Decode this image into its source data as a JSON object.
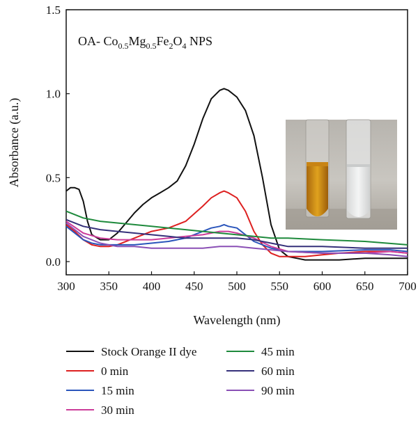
{
  "chart_data": {
    "type": "line",
    "annotation": {
      "prefix": "OA- Co",
      "s1": "0.5",
      "m": "Mg",
      "s2": "0.5",
      "fe": "Fe",
      "s3": "2",
      "o": "O",
      "s4": "4",
      "suffix": " NPS"
    },
    "xlabel": "Wavelength (nm)",
    "ylabel": "Absorbance (a.u.)",
    "xlim": [
      300,
      700
    ],
    "ylim": [
      0,
      1.5
    ],
    "x_ticks": [
      "300",
      "350",
      "400",
      "450",
      "500",
      "550",
      "600",
      "650",
      "700"
    ],
    "y_ticks": [
      "0.0",
      "0.5",
      "1.0",
      "1.5"
    ],
    "grid": false,
    "legend_position": "below",
    "inset": "photo of two test tubes (orange dye solution and clear solution)",
    "series": [
      {
        "name": "Stock Orange II dye",
        "color": "#111111",
        "x": [
          300,
          305,
          310,
          315,
          320,
          325,
          330,
          340,
          350,
          360,
          370,
          380,
          390,
          400,
          410,
          420,
          430,
          440,
          450,
          460,
          470,
          480,
          485,
          490,
          500,
          510,
          520,
          530,
          540,
          550,
          560,
          570,
          580,
          600,
          620,
          650,
          680,
          700
        ],
        "y": [
          0.42,
          0.44,
          0.44,
          0.43,
          0.36,
          0.24,
          0.16,
          0.13,
          0.13,
          0.17,
          0.23,
          0.29,
          0.34,
          0.38,
          0.41,
          0.44,
          0.48,
          0.57,
          0.7,
          0.85,
          0.97,
          1.02,
          1.03,
          1.02,
          0.98,
          0.9,
          0.75,
          0.5,
          0.22,
          0.07,
          0.03,
          0.02,
          0.01,
          0.01,
          0.01,
          0.02,
          0.02,
          0.02
        ]
      },
      {
        "name": "0 min",
        "color": "#dd2020",
        "x": [
          300,
          310,
          320,
          330,
          340,
          350,
          360,
          380,
          400,
          420,
          440,
          460,
          470,
          480,
          485,
          490,
          500,
          510,
          520,
          530,
          540,
          550,
          560,
          580,
          600,
          620,
          650,
          680,
          700
        ],
        "y": [
          0.22,
          0.18,
          0.13,
          0.1,
          0.09,
          0.09,
          0.1,
          0.14,
          0.18,
          0.2,
          0.24,
          0.33,
          0.38,
          0.41,
          0.42,
          0.41,
          0.38,
          0.3,
          0.18,
          0.1,
          0.05,
          0.03,
          0.03,
          0.03,
          0.04,
          0.05,
          0.06,
          0.06,
          0.05
        ]
      },
      {
        "name": "15 min",
        "color": "#2a55bb",
        "x": [
          300,
          310,
          320,
          330,
          340,
          350,
          360,
          380,
          400,
          420,
          440,
          460,
          470,
          480,
          485,
          490,
          500,
          510,
          520,
          540,
          560,
          600,
          650,
          680,
          700
        ],
        "y": [
          0.21,
          0.17,
          0.13,
          0.11,
          0.1,
          0.1,
          0.1,
          0.1,
          0.11,
          0.12,
          0.14,
          0.18,
          0.2,
          0.21,
          0.22,
          0.21,
          0.2,
          0.16,
          0.12,
          0.08,
          0.06,
          0.06,
          0.07,
          0.07,
          0.06
        ]
      },
      {
        "name": "30 min",
        "color": "#cc3c9a",
        "x": [
          300,
          320,
          340,
          360,
          380,
          400,
          420,
          440,
          460,
          480,
          490,
          500,
          520,
          540,
          560,
          600,
          650,
          680,
          700
        ],
        "y": [
          0.24,
          0.17,
          0.14,
          0.13,
          0.13,
          0.13,
          0.14,
          0.15,
          0.16,
          0.18,
          0.18,
          0.17,
          0.14,
          0.09,
          0.06,
          0.05,
          0.05,
          0.06,
          0.05
        ]
      },
      {
        "name": "45 min",
        "color": "#1e8a3c",
        "x": [
          300,
          320,
          340,
          360,
          380,
          400,
          420,
          440,
          460,
          480,
          500,
          520,
          540,
          560,
          600,
          650,
          700
        ],
        "y": [
          0.3,
          0.26,
          0.24,
          0.23,
          0.22,
          0.21,
          0.2,
          0.19,
          0.18,
          0.17,
          0.16,
          0.15,
          0.14,
          0.14,
          0.13,
          0.12,
          0.1
        ]
      },
      {
        "name": "60 min",
        "color": "#35307a",
        "x": [
          300,
          320,
          340,
          360,
          380,
          400,
          420,
          440,
          460,
          480,
          500,
          520,
          540,
          560,
          600,
          650,
          700
        ],
        "y": [
          0.25,
          0.21,
          0.19,
          0.18,
          0.17,
          0.16,
          0.15,
          0.14,
          0.14,
          0.14,
          0.14,
          0.13,
          0.11,
          0.09,
          0.09,
          0.08,
          0.08
        ]
      },
      {
        "name": "90 min",
        "color": "#8a4fb5",
        "x": [
          300,
          320,
          340,
          360,
          380,
          400,
          420,
          440,
          460,
          480,
          500,
          520,
          540,
          560,
          600,
          650,
          680,
          700
        ],
        "y": [
          0.23,
          0.15,
          0.11,
          0.09,
          0.09,
          0.08,
          0.08,
          0.08,
          0.08,
          0.09,
          0.09,
          0.08,
          0.07,
          0.06,
          0.05,
          0.05,
          0.04,
          0.03
        ]
      }
    ]
  }
}
